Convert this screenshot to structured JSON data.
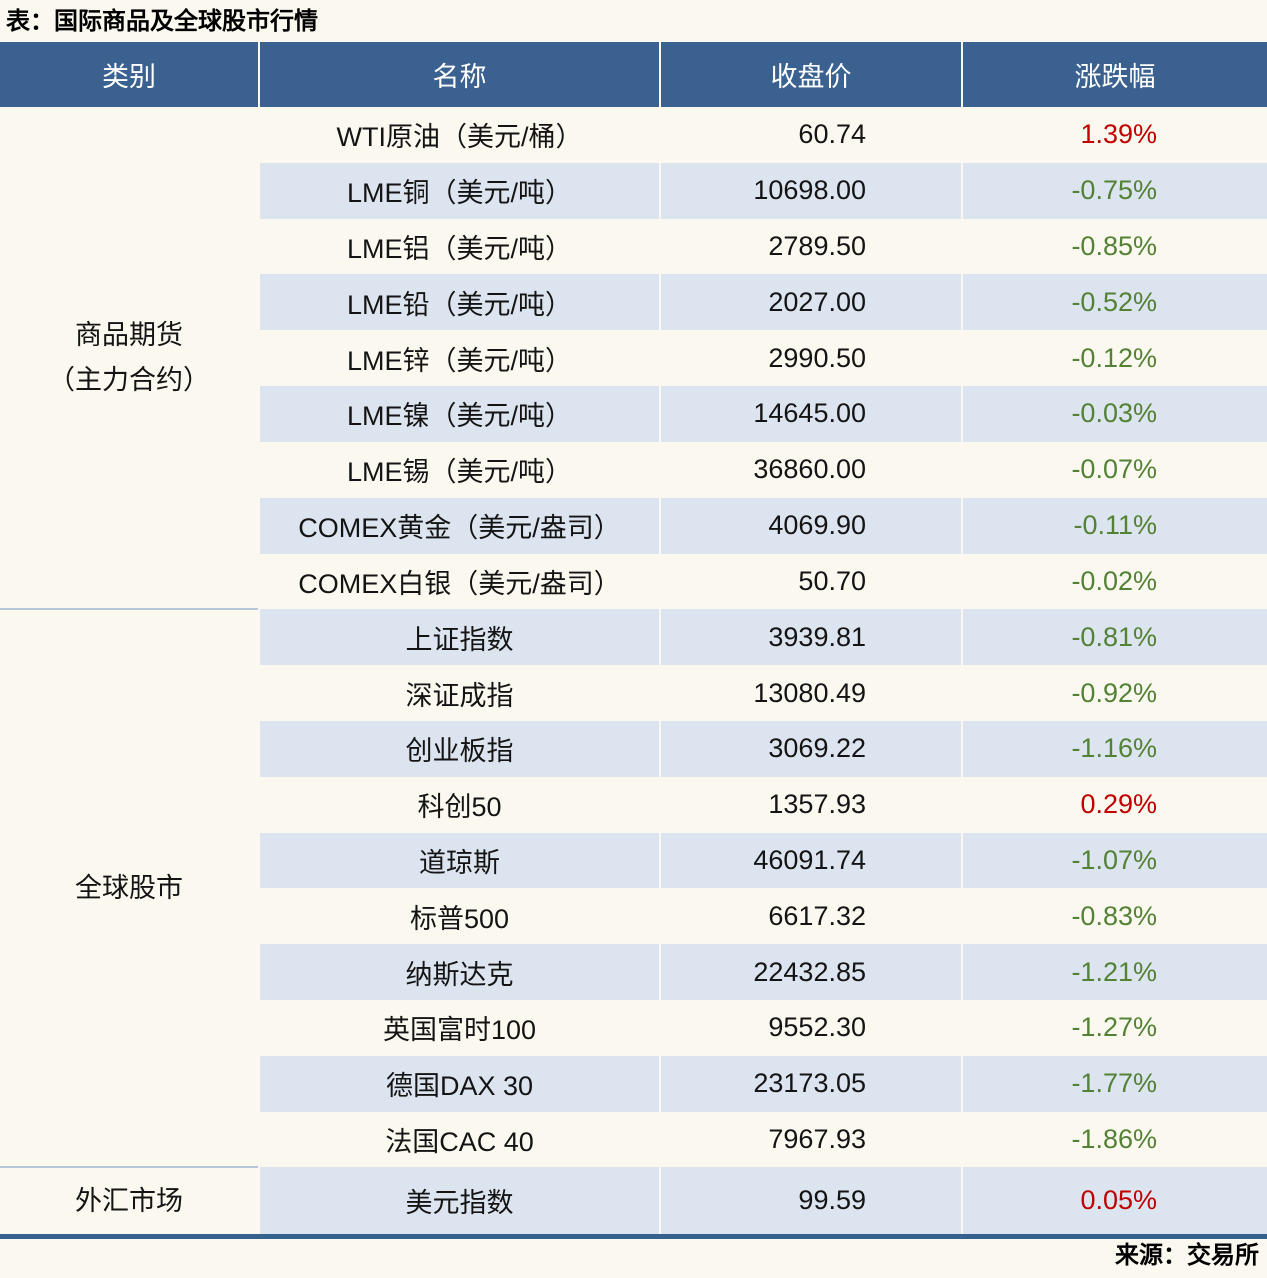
{
  "title": "表：国际商品及全球股市行情",
  "source": "来源：交易所",
  "colors": {
    "page_bg": "#FBF9EF",
    "header_bg": "#3A6190",
    "header_text": "#FFFFFF",
    "stripe_bg": "#DCE4EF",
    "body_text": "#141414",
    "up_red": "#C00000",
    "down_green": "#538135",
    "group_divider": "#B7C6D9",
    "bottom_border": "#36618E"
  },
  "chart_data": {
    "type": "table",
    "title": "表：国际商品及全球股市行情",
    "columns": [
      "类别",
      "名称",
      "收盘价",
      "涨跌幅"
    ],
    "groups": [
      {
        "category_lines": [
          "商品期货",
          "（主力合约）"
        ],
        "rows": [
          {
            "name": "WTI原油（美元/桶）",
            "close": "60.74",
            "change": "1.39%",
            "direction": "up"
          },
          {
            "name": "LME铜（美元/吨）",
            "close": "10698.00",
            "change": "-0.75%",
            "direction": "down"
          },
          {
            "name": "LME铝（美元/吨）",
            "close": "2789.50",
            "change": "-0.85%",
            "direction": "down"
          },
          {
            "name": "LME铅（美元/吨）",
            "close": "2027.00",
            "change": "-0.52%",
            "direction": "down"
          },
          {
            "name": "LME锌（美元/吨）",
            "close": "2990.50",
            "change": "-0.12%",
            "direction": "down"
          },
          {
            "name": "LME镍（美元/吨）",
            "close": "14645.00",
            "change": "-0.03%",
            "direction": "down"
          },
          {
            "name": "LME锡（美元/吨）",
            "close": "36860.00",
            "change": "-0.07%",
            "direction": "down"
          },
          {
            "name": "COMEX黄金（美元/盎司）",
            "close": "4069.90",
            "change": "-0.11%",
            "direction": "down"
          },
          {
            "name": "COMEX白银（美元/盎司）",
            "close": "50.70",
            "change": "-0.02%",
            "direction": "down"
          }
        ]
      },
      {
        "category_lines": [
          "全球股市"
        ],
        "rows": [
          {
            "name": "上证指数",
            "close": "3939.81",
            "change": "-0.81%",
            "direction": "down"
          },
          {
            "name": "深证成指",
            "close": "13080.49",
            "change": "-0.92%",
            "direction": "down"
          },
          {
            "name": "创业板指",
            "close": "3069.22",
            "change": "-1.16%",
            "direction": "down"
          },
          {
            "name": "科创50",
            "close": "1357.93",
            "change": "0.29%",
            "direction": "up"
          },
          {
            "name": "道琼斯",
            "close": "46091.74",
            "change": "-1.07%",
            "direction": "down"
          },
          {
            "name": "标普500",
            "close": "6617.32",
            "change": "-0.83%",
            "direction": "down"
          },
          {
            "name": "纳斯达克",
            "close": "22432.85",
            "change": "-1.21%",
            "direction": "down"
          },
          {
            "name": "英国富时100",
            "close": "9552.30",
            "change": "-1.27%",
            "direction": "down"
          },
          {
            "name": "德国DAX 30",
            "close": "23173.05",
            "change": "-1.77%",
            "direction": "down"
          },
          {
            "name": "法国CAC 40",
            "close": "7967.93",
            "change": "-1.86%",
            "direction": "down"
          }
        ]
      },
      {
        "category_lines": [
          "外汇市场"
        ],
        "rows": [
          {
            "name": "美元指数",
            "close": "99.59",
            "change": "0.05%",
            "direction": "up"
          }
        ]
      }
    ]
  }
}
